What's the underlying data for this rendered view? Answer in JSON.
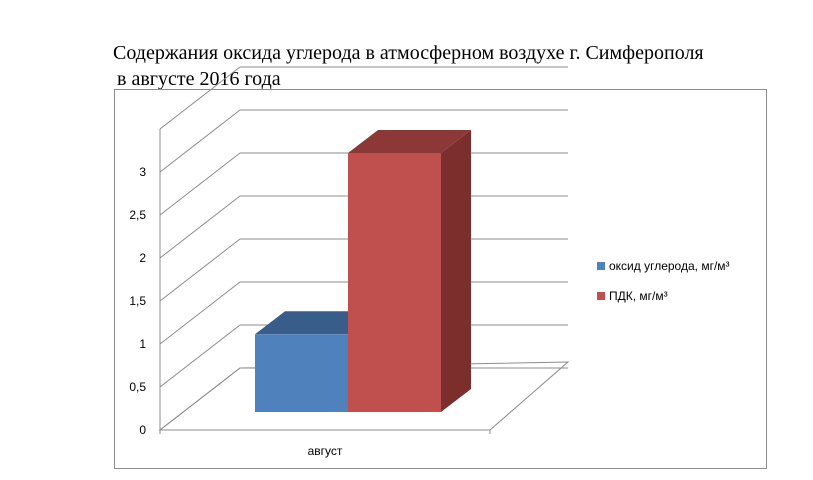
{
  "chart_data": {
    "type": "bar",
    "title_lines": [
      "Содержания оксида углерода в атмосферном воздухе г. Симферополя",
      "в августе 2016 года"
    ],
    "categories": [
      "август"
    ],
    "series": [
      {
        "name": "оксид углерода, мг/м³",
        "values": [
          0.9
        ],
        "color": "#4f81bd",
        "top_color": "#385d8a",
        "side_color": "#2f5078"
      },
      {
        "name": "ПДК, мг/м³",
        "values": [
          3
        ],
        "color": "#c0504d",
        "top_color": "#8c3836",
        "side_color": "#7b2e2c"
      }
    ],
    "y_ticks": [
      "0",
      "0,5",
      "1",
      "1,5",
      "2",
      "2,5",
      "3"
    ],
    "ylim": [
      0,
      3.5
    ],
    "grid": true,
    "legend_position": "right",
    "three_d": true
  }
}
